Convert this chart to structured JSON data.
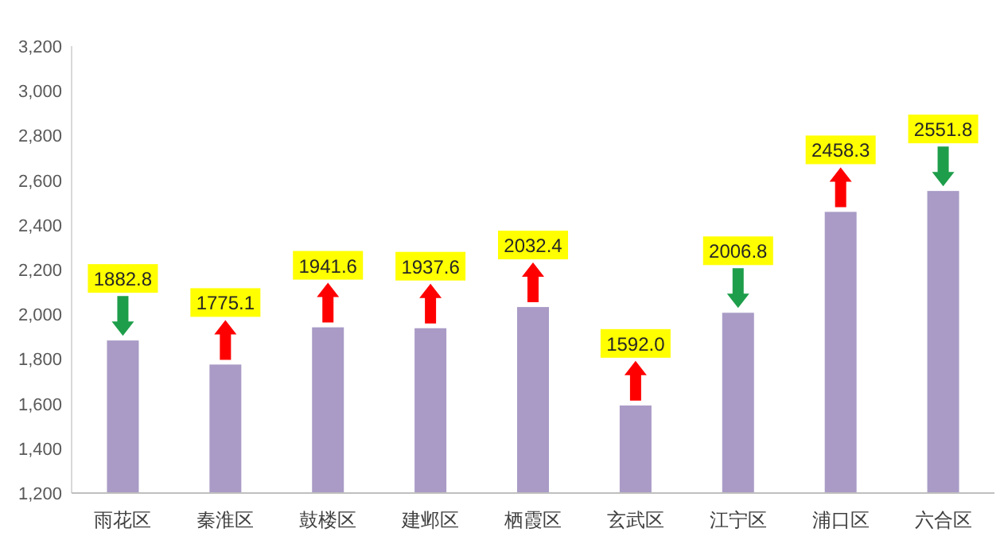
{
  "chart_data": {
    "type": "bar",
    "categories": [
      "雨花区",
      "秦淮区",
      "鼓楼区",
      "建邺区",
      "栖霞区",
      "玄武区",
      "江宁区",
      "浦口区",
      "六合区"
    ],
    "values": [
      1882.8,
      1775.1,
      1941.6,
      1937.6,
      2032.4,
      1592.0,
      2006.8,
      2458.3,
      2551.8
    ],
    "color": "#a99bc6",
    "ylim": [
      1200,
      3200
    ],
    "yticks": [
      {
        "value": 1200,
        "label": "1,200"
      },
      {
        "value": 1400,
        "label": "1,400"
      },
      {
        "value": 1600,
        "label": "1,600"
      },
      {
        "value": 1800,
        "label": "1,800"
      },
      {
        "value": 2000,
        "label": "2,000"
      },
      {
        "value": 2200,
        "label": "2,200"
      },
      {
        "value": 2400,
        "label": "2,400"
      },
      {
        "value": 2600,
        "label": "2,600"
      },
      {
        "value": 2800,
        "label": "2,800"
      },
      {
        "value": 3000,
        "label": "3,000"
      },
      {
        "value": 3200,
        "label": "3,200"
      }
    ],
    "value_labels": [
      "1882.8",
      "1775.1",
      "1941.6",
      "1937.6",
      "2032.4",
      "1592.0",
      "2006.8",
      "2458.3",
      "2551.8"
    ],
    "grid": false
  }
}
